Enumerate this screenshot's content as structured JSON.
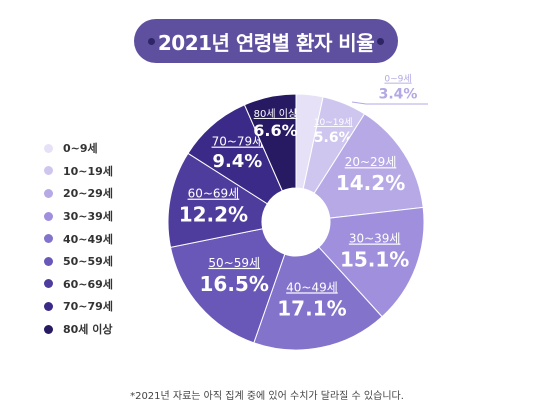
{
  "title": "2021년 연령별 환자 비율",
  "footnote": "*2021년 자료는 아직 집계 중에 있어 수치가 달라질 수 있습니다.",
  "chart_data": {
    "type": "pie",
    "style": "donut",
    "title": "2021년 연령별 환자 비율",
    "unit": "%",
    "legend_position": "left",
    "categories": [
      "0~9세",
      "10~19세",
      "20~29세",
      "30~39세",
      "40~49세",
      "50~59세",
      "60~69세",
      "70~79세",
      "80세 이상"
    ],
    "values": [
      3.4,
      5.6,
      14.2,
      15.1,
      17.1,
      16.5,
      12.2,
      9.4,
      6.6
    ],
    "value_labels": [
      "3.4%",
      "5.6%",
      "14.2%",
      "15.1%",
      "17.1%",
      "16.5%",
      "12.2%",
      "9.4%",
      "6.6%"
    ],
    "colors": [
      "#e6e1f6",
      "#cfc6ef",
      "#b6a9e6",
      "#9f8fdc",
      "#8473cb",
      "#6a58b8",
      "#4f3d9e",
      "#3b2a87",
      "#271a63"
    ]
  }
}
